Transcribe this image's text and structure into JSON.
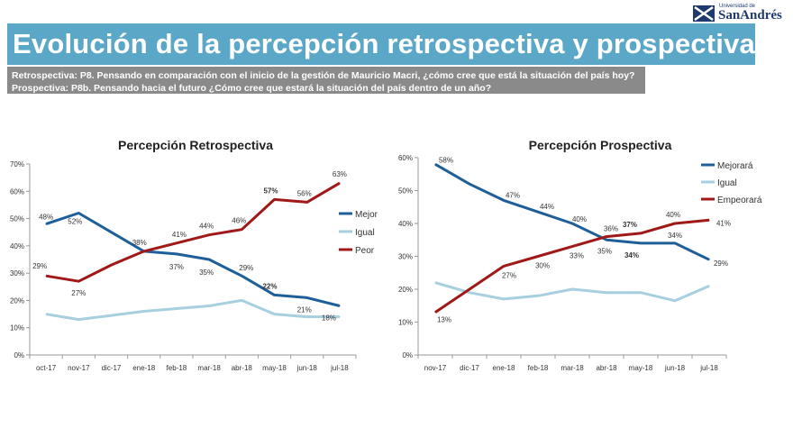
{
  "header": {
    "title": "Evolución de la percepción retrospectiva y prospectiva",
    "line1": "Retrospectiva: P8. Pensando en comparación con el inicio de la gestión de Mauricio Macri, ¿cómo cree que está la situación del país hoy?",
    "line2": "Prospectiva: P8b. Pensando hacia el futuro ¿Cómo cree que estará la situación del país dentro de un año?"
  },
  "logo": {
    "small_text": "Universidad de",
    "name": "SanAndrés",
    "color": "#1f3a6e"
  },
  "chart_data": [
    {
      "type": "line",
      "title": "Percepción Retrospectiva",
      "categories": [
        "oct-17",
        "nov-17",
        "dic-17",
        "ene-18",
        "feb-18",
        "mar-18",
        "abr-18",
        "may-18",
        "jun-18",
        "jul-18"
      ],
      "yticks": [
        "0%",
        "10%",
        "20%",
        "30%",
        "40%",
        "50%",
        "60%",
        "70%"
      ],
      "ylim": [
        0,
        70
      ],
      "legend_position": "right",
      "series": [
        {
          "name": "Mejor",
          "color": "#1f5f99",
          "values": [
            48,
            52,
            45,
            38,
            37,
            35,
            29,
            22,
            21,
            18
          ],
          "labels": [
            "48%",
            "52%",
            "",
            "",
            "37%",
            "35%",
            "29%",
            "22%",
            "21%",
            "18%"
          ]
        },
        {
          "name": "Igual",
          "color": "#a8cfdf",
          "values": [
            15,
            13,
            14.5,
            16,
            17,
            18,
            20,
            15,
            14,
            14
          ],
          "labels": [
            "",
            "",
            "",
            "",
            "",
            "",
            "",
            "",
            "",
            ""
          ]
        },
        {
          "name": "Peor",
          "color": "#a01818",
          "values": [
            29,
            27,
            33,
            38,
            41,
            44,
            46,
            57,
            56,
            63
          ],
          "labels": [
            "29%",
            "27%",
            "",
            "38%",
            "41%",
            "44%",
            "46%",
            "57%",
            "56%",
            "63%"
          ]
        }
      ]
    },
    {
      "type": "line",
      "title": "Percepción Prospectiva",
      "categories": [
        "nov-17",
        "dic-17",
        "ene-18",
        "feb-18",
        "mar-18",
        "abr-18",
        "may-18",
        "jun-18",
        "jul-18"
      ],
      "yticks": [
        "0%",
        "10%",
        "20%",
        "30%",
        "40%",
        "50%",
        "60%"
      ],
      "ylim": [
        0,
        60
      ],
      "legend_position": "top-right",
      "series": [
        {
          "name": "Mejorará",
          "color": "#1f5f99",
          "values": [
            58,
            52,
            47,
            43.5,
            40,
            35,
            34,
            34,
            29
          ],
          "labels": [
            "58%",
            "",
            "47%",
            "44%",
            "40%",
            "35%",
            "34%",
            "34%",
            "29%"
          ]
        },
        {
          "name": "Igual",
          "color": "#a8cfdf",
          "values": [
            22,
            19,
            17,
            18,
            20,
            19,
            19,
            16.5,
            21
          ],
          "labels": [
            "",
            "",
            "",
            "",
            "",
            "",
            "",
            "",
            ""
          ]
        },
        {
          "name": "Empeorará",
          "color": "#a01818",
          "values": [
            13,
            20,
            27,
            30,
            33,
            36,
            37,
            40,
            41
          ],
          "labels": [
            "13%",
            "",
            "27%",
            "30%",
            "33%",
            "36%",
            "37%",
            "40%",
            "41%"
          ]
        }
      ]
    }
  ]
}
